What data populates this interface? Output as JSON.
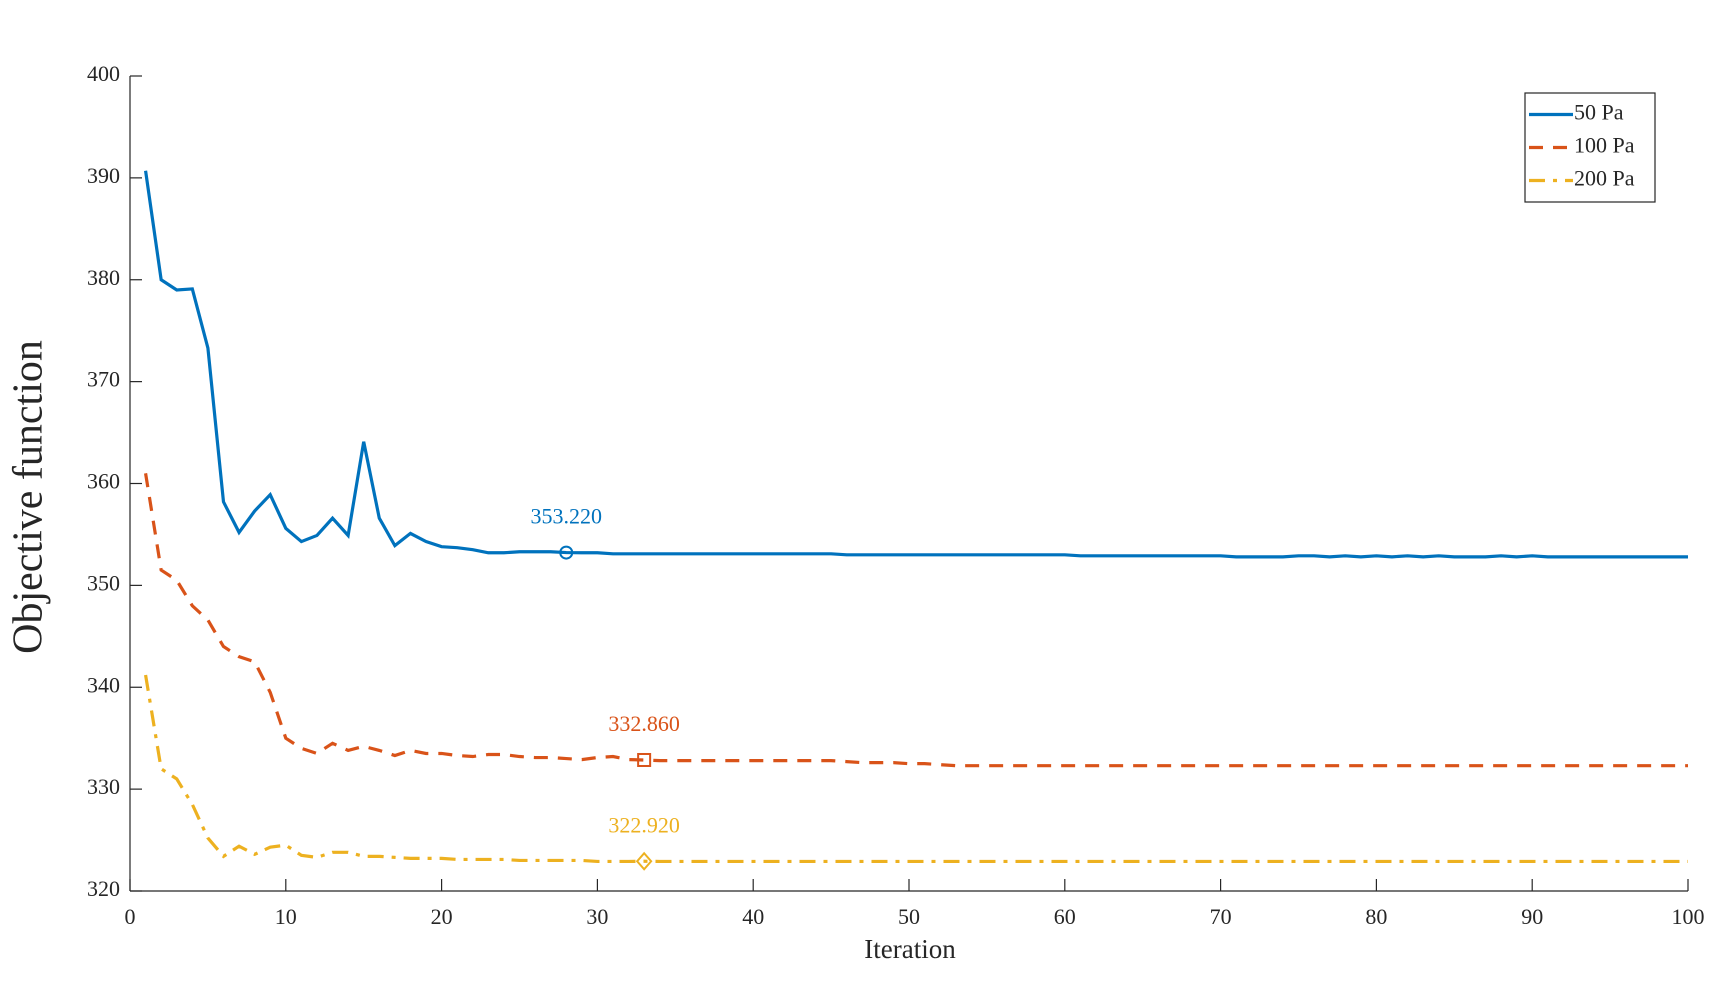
{
  "chart_data": {
    "type": "line",
    "xlabel": "Iteration",
    "ylabel": "Objective function",
    "xlim": [
      0,
      100
    ],
    "xticks": [
      0,
      10,
      20,
      30,
      40,
      50,
      60,
      70,
      80,
      90,
      100
    ],
    "ylim": [
      320,
      400
    ],
    "yticks": [
      320,
      330,
      340,
      350,
      360,
      370,
      380,
      390,
      400
    ],
    "legend": "northeast",
    "grid": false,
    "x": [
      1,
      2,
      3,
      4,
      5,
      6,
      7,
      8,
      9,
      10,
      11,
      12,
      13,
      14,
      15,
      16,
      17,
      18,
      19,
      20,
      21,
      22,
      23,
      24,
      25,
      26,
      27,
      28,
      29,
      30,
      31,
      32,
      33,
      34,
      35,
      36,
      37,
      38,
      39,
      40,
      41,
      42,
      43,
      44,
      45,
      46,
      47,
      48,
      49,
      50,
      51,
      52,
      53,
      54,
      55,
      56,
      57,
      58,
      59,
      60,
      61,
      62,
      63,
      64,
      65,
      66,
      67,
      68,
      69,
      70,
      71,
      72,
      73,
      74,
      75,
      76,
      77,
      78,
      79,
      80,
      81,
      82,
      83,
      84,
      85,
      86,
      87,
      88,
      89,
      90,
      91,
      92,
      93,
      94,
      95,
      96,
      97,
      98,
      99,
      100
    ],
    "series": [
      {
        "name": "50 Pa",
        "color": "#0072BD",
        "dash": "solid",
        "values": [
          390.7,
          380.0,
          379.0,
          379.1,
          373.3,
          358.2,
          355.2,
          357.3,
          358.9,
          355.6,
          354.3,
          354.9,
          356.6,
          354.9,
          364.1,
          356.6,
          353.9,
          355.1,
          354.3,
          353.8,
          353.7,
          353.5,
          353.2,
          353.2,
          353.3,
          353.3,
          353.3,
          353.22,
          353.2,
          353.2,
          353.1,
          353.1,
          353.1,
          353.1,
          353.1,
          353.1,
          353.1,
          353.1,
          353.1,
          353.1,
          353.1,
          353.1,
          353.1,
          353.1,
          353.1,
          353.0,
          353.0,
          353.0,
          353.0,
          353.0,
          353.0,
          353.0,
          353.0,
          353.0,
          353.0,
          353.0,
          353.0,
          353.0,
          353.0,
          353.0,
          352.9,
          352.9,
          352.9,
          352.9,
          352.9,
          352.9,
          352.9,
          352.9,
          352.9,
          352.9,
          352.8,
          352.8,
          352.8,
          352.8,
          352.9,
          352.9,
          352.8,
          352.9,
          352.8,
          352.9,
          352.8,
          352.9,
          352.8,
          352.9,
          352.8,
          352.8,
          352.8,
          352.9,
          352.8,
          352.9,
          352.8,
          352.8,
          352.8,
          352.8,
          352.8,
          352.8,
          352.8,
          352.8,
          352.8,
          352.8
        ]
      },
      {
        "name": "100 Pa",
        "color": "#D95319",
        "dash": "dashed",
        "values": [
          361.0,
          351.5,
          350.5,
          348.0,
          346.6,
          344.0,
          343.0,
          342.5,
          339.5,
          335.0,
          334.0,
          333.5,
          334.5,
          333.8,
          334.2,
          333.8,
          333.3,
          333.8,
          333.5,
          333.5,
          333.3,
          333.2,
          333.4,
          333.4,
          333.2,
          333.1,
          333.1,
          333.0,
          332.9,
          333.1,
          333.2,
          332.9,
          332.86,
          332.8,
          332.8,
          332.8,
          332.8,
          332.8,
          332.8,
          332.8,
          332.8,
          332.8,
          332.8,
          332.8,
          332.8,
          332.7,
          332.6,
          332.6,
          332.6,
          332.5,
          332.5,
          332.4,
          332.3,
          332.3,
          332.3,
          332.3,
          332.3,
          332.3,
          332.3,
          332.3,
          332.3,
          332.3,
          332.3,
          332.3,
          332.3,
          332.3,
          332.3,
          332.3,
          332.3,
          332.3,
          332.3,
          332.3,
          332.3,
          332.3,
          332.3,
          332.3,
          332.3,
          332.3,
          332.3,
          332.3,
          332.3,
          332.3,
          332.3,
          332.3,
          332.3,
          332.3,
          332.3,
          332.3,
          332.3,
          332.3,
          332.3,
          332.3,
          332.3,
          332.3,
          332.3,
          332.3,
          332.3,
          332.3,
          332.3,
          332.3
        ]
      },
      {
        "name": "200 Pa",
        "color": "#EDB120",
        "dash": "dashdot",
        "values": [
          341.2,
          332.0,
          331.0,
          328.5,
          325.2,
          323.4,
          324.4,
          323.6,
          324.3,
          324.5,
          323.5,
          323.3,
          323.8,
          323.8,
          323.4,
          323.4,
          323.3,
          323.2,
          323.2,
          323.2,
          323.1,
          323.1,
          323.1,
          323.1,
          323.0,
          323.0,
          323.0,
          323.0,
          323.0,
          322.9,
          322.9,
          322.9,
          322.92,
          322.9,
          322.9,
          322.9,
          322.9,
          322.9,
          322.9,
          322.9,
          322.9,
          322.9,
          322.9,
          322.9,
          322.9,
          322.9,
          322.9,
          322.9,
          322.9,
          322.9,
          322.9,
          322.9,
          322.9,
          322.9,
          322.9,
          322.9,
          322.9,
          322.9,
          322.9,
          322.9,
          322.9,
          322.9,
          322.9,
          322.9,
          322.9,
          322.9,
          322.9,
          322.9,
          322.9,
          322.9,
          322.9,
          322.9,
          322.9,
          322.9,
          322.9,
          322.9,
          322.9,
          322.9,
          322.9,
          322.9,
          322.9,
          322.9,
          322.9,
          322.9,
          322.9,
          322.9,
          322.9,
          322.9,
          322.9,
          322.9,
          322.9,
          322.9,
          322.9,
          322.9,
          322.9,
          322.9,
          322.9,
          322.9,
          322.9,
          322.9
        ]
      }
    ],
    "annotations": [
      {
        "x": 28,
        "y": 353.22,
        "label": "353.220",
        "marker": "circle",
        "color": "#0072BD"
      },
      {
        "x": 33,
        "y": 332.86,
        "label": "332.860",
        "marker": "square",
        "color": "#D95319"
      },
      {
        "x": 33,
        "y": 322.92,
        "label": "322.920",
        "marker": "diamond",
        "color": "#EDB120"
      }
    ]
  }
}
